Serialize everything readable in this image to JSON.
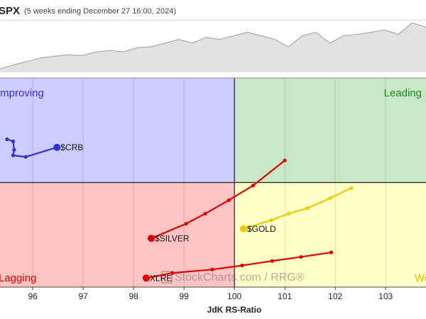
{
  "chart_data": {
    "type": "rrg",
    "title": "SPX",
    "subtitle": "(5 weeks ending December 27 16:00, 2024)",
    "x_label": "JdK RS-Ratio",
    "watermark": "StockCharts.com / RRG®",
    "benchmark_values": [
      5868,
      5886,
      5904,
      5921,
      5929,
      5936,
      5932,
      5950,
      5957,
      5950,
      5971,
      5975,
      5993,
      6011,
      5993,
      6021,
      6011,
      6029,
      6046,
      6029,
      6011,
      5975,
      6029,
      6046,
      5993,
      6029,
      6036,
      6046,
      6057,
      6036,
      6093,
      6071
    ],
    "benchmark_ylim": [
      5850,
      6100
    ],
    "center": 100,
    "xlim": [
      95.35,
      103.8
    ],
    "ylim": [
      97.92,
      102.08
    ],
    "xticks": [
      96,
      97,
      98,
      99,
      100,
      101,
      102,
      103
    ],
    "grid": true,
    "quadrants": [
      {
        "name": "Improving",
        "color": "#ccccff",
        "text_color": "#3333cc"
      },
      {
        "name": "Leading",
        "color": "#c8e8c8",
        "text_color": "#1a8a1a"
      },
      {
        "name": "Lagging",
        "color": "#ffc4c4",
        "text_color": "#dd0000"
      },
      {
        "name": "Weakening",
        "color": "#ffffc8",
        "text_color": "#e0b800"
      }
    ],
    "series": [
      {
        "name": "$CRB",
        "color": "#3333cc",
        "x": [
          95.49,
          95.61,
          95.63,
          95.61,
          95.86,
          96.48
        ],
        "values": [
          100.86,
          100.82,
          100.65,
          100.54,
          100.51,
          100.7
        ]
      },
      {
        "name": "XLRE",
        "color": "#dd0000",
        "x": [
          101.92,
          101.32,
          100.75,
          100.15,
          99.56,
          98.77,
          98.25
        ],
        "values": [
          98.61,
          98.52,
          98.44,
          98.35,
          98.27,
          98.2,
          98.1
        ]
      },
      {
        "name": "$SILVER",
        "color": "#dd0000",
        "x": [
          101.0,
          100.37,
          99.89,
          99.42,
          99.04,
          98.35
        ],
        "values": [
          100.44,
          99.94,
          99.65,
          99.38,
          99.18,
          98.89
        ]
      },
      {
        "name": "$GOLD",
        "color": "#f0c800",
        "x": [
          102.32,
          101.9,
          101.45,
          101.07,
          100.73,
          100.18
        ],
        "values": [
          99.89,
          99.69,
          99.49,
          99.38,
          99.25,
          99.08
        ]
      }
    ]
  }
}
